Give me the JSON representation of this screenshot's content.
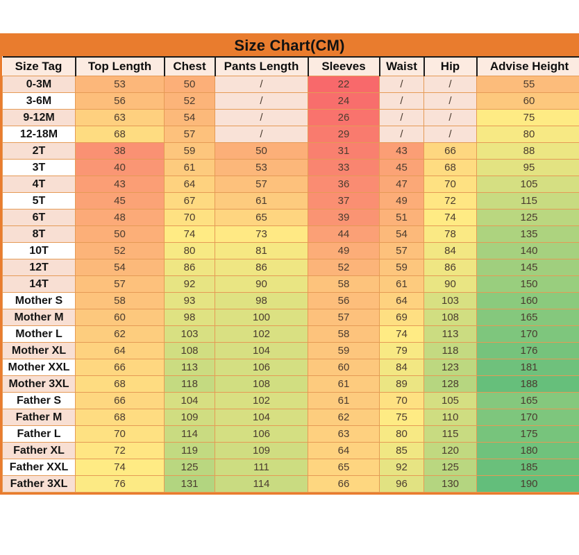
{
  "chart_data": {
    "type": "table",
    "title": "Size Chart(CM)",
    "columns": [
      "Size Tag",
      "Top Length",
      "Chest",
      "Pants Length",
      "Sleeves",
      "Waist",
      "Hip",
      "Advise Height"
    ],
    "na_symbol": "/",
    "rows": [
      {
        "tag": "0-3M",
        "shaded": true,
        "values": [
          "53",
          "50",
          "/",
          "22",
          "/",
          "/",
          "55"
        ]
      },
      {
        "tag": "3-6M",
        "shaded": false,
        "values": [
          "56",
          "52",
          "/",
          "24",
          "/",
          "/",
          "60"
        ]
      },
      {
        "tag": "9-12M",
        "shaded": true,
        "values": [
          "63",
          "54",
          "/",
          "26",
          "/",
          "/",
          "75"
        ]
      },
      {
        "tag": "12-18M",
        "shaded": false,
        "values": [
          "68",
          "57",
          "/",
          "29",
          "/",
          "/",
          "80"
        ]
      },
      {
        "tag": "2T",
        "shaded": true,
        "values": [
          "38",
          "59",
          "50",
          "31",
          "43",
          "66",
          "88"
        ]
      },
      {
        "tag": "3T",
        "shaded": false,
        "values": [
          "40",
          "61",
          "53",
          "33",
          "45",
          "68",
          "95"
        ]
      },
      {
        "tag": "4T",
        "shaded": true,
        "values": [
          "43",
          "64",
          "57",
          "36",
          "47",
          "70",
          "105"
        ]
      },
      {
        "tag": "5T",
        "shaded": false,
        "values": [
          "45",
          "67",
          "61",
          "37",
          "49",
          "72",
          "115"
        ]
      },
      {
        "tag": "6T",
        "shaded": true,
        "values": [
          "48",
          "70",
          "65",
          "39",
          "51",
          "74",
          "125"
        ]
      },
      {
        "tag": "8T",
        "shaded": true,
        "values": [
          "50",
          "74",
          "73",
          "44",
          "54",
          "78",
          "135"
        ]
      },
      {
        "tag": "10T",
        "shaded": false,
        "values": [
          "52",
          "80",
          "81",
          "49",
          "57",
          "84",
          "140"
        ]
      },
      {
        "tag": "12T",
        "shaded": true,
        "values": [
          "54",
          "86",
          "86",
          "52",
          "59",
          "86",
          "145"
        ]
      },
      {
        "tag": "14T",
        "shaded": true,
        "values": [
          "57",
          "92",
          "90",
          "58",
          "61",
          "90",
          "150"
        ]
      },
      {
        "tag": "Mother S",
        "shaded": false,
        "values": [
          "58",
          "93",
          "98",
          "56",
          "64",
          "103",
          "160"
        ]
      },
      {
        "tag": "Mother M",
        "shaded": true,
        "values": [
          "60",
          "98",
          "100",
          "57",
          "69",
          "108",
          "165"
        ]
      },
      {
        "tag": "Mother L",
        "shaded": false,
        "values": [
          "62",
          "103",
          "102",
          "58",
          "74",
          "113",
          "170"
        ]
      },
      {
        "tag": "Mother XL",
        "shaded": true,
        "values": [
          "64",
          "108",
          "104",
          "59",
          "79",
          "118",
          "176"
        ]
      },
      {
        "tag": "Mother XXL",
        "shaded": false,
        "values": [
          "66",
          "113",
          "106",
          "60",
          "84",
          "123",
          "181"
        ]
      },
      {
        "tag": "Mother 3XL",
        "shaded": true,
        "values": [
          "68",
          "118",
          "108",
          "61",
          "89",
          "128",
          "188"
        ]
      },
      {
        "tag": "Father S",
        "shaded": false,
        "values": [
          "66",
          "104",
          "102",
          "61",
          "70",
          "105",
          "165"
        ]
      },
      {
        "tag": "Father M",
        "shaded": true,
        "values": [
          "68",
          "109",
          "104",
          "62",
          "75",
          "110",
          "170"
        ]
      },
      {
        "tag": "Father L",
        "shaded": false,
        "values": [
          "70",
          "114",
          "106",
          "63",
          "80",
          "115",
          "175"
        ]
      },
      {
        "tag": "Father XL",
        "shaded": true,
        "values": [
          "72",
          "119",
          "109",
          "64",
          "85",
          "120",
          "180"
        ]
      },
      {
        "tag": "Father XXL",
        "shaded": false,
        "values": [
          "74",
          "125",
          "111",
          "65",
          "92",
          "125",
          "185"
        ]
      },
      {
        "tag": "Father 3XL",
        "shaded": true,
        "values": [
          "76",
          "131",
          "114",
          "66",
          "96",
          "130",
          "190"
        ]
      }
    ],
    "color_scale": {
      "min": 22,
      "mid": 74,
      "max": 190,
      "min_color": "#F8696B",
      "mid_color": "#FFEB84",
      "max_color": "#63BE7B"
    },
    "colors": {
      "title_bg": "#E97C2E",
      "outer_border": "#E97C2E",
      "grid_border": "#E59A55",
      "header_border": "#1A1A1A",
      "header_bg": "#FCEBE1",
      "tag_shaded_bg": "#F8DFD3",
      "tag_plain_bg": "#FFFFFF",
      "na_bg": "#F9E2D7",
      "value_text": "#4A3B2F"
    }
  }
}
